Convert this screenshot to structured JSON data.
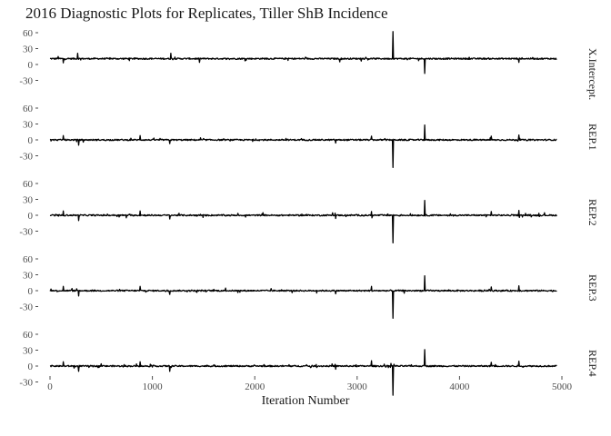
{
  "chart_data": {
    "type": "line",
    "title": "2016 Diagnostic Plots for Replicates, Tiller ShB Incidence",
    "xlabel": "Iteration Number",
    "ylabel": "",
    "x_ticks": [
      0,
      1000,
      2000,
      3000,
      4000,
      5000
    ],
    "xlim": [
      0,
      4950
    ],
    "y_ticks": [
      60,
      30,
      0,
      -30
    ],
    "ylim": [
      -45,
      70
    ],
    "grid": false,
    "legend": "none",
    "n_iterations": 4950,
    "panels": [
      {
        "name": "X.Intercept.",
        "baseline": 11,
        "noise": 1.3,
        "spikes": [
          {
            "x": 80,
            "y": 15
          },
          {
            "x": 130,
            "y": 3
          },
          {
            "x": 270,
            "y": 21
          },
          {
            "x": 1180,
            "y": 21
          },
          {
            "x": 1460,
            "y": 4
          },
          {
            "x": 2830,
            "y": 5
          },
          {
            "x": 3350,
            "y": 62
          },
          {
            "x": 3660,
            "y": -17
          },
          {
            "x": 4580,
            "y": 4
          }
        ]
      },
      {
        "name": "REP.1",
        "baseline": 0,
        "noise": 1.3,
        "spikes": [
          {
            "x": 130,
            "y": 8
          },
          {
            "x": 280,
            "y": -10
          },
          {
            "x": 880,
            "y": 8
          },
          {
            "x": 1170,
            "y": -7
          },
          {
            "x": 2790,
            "y": -6
          },
          {
            "x": 3140,
            "y": 7
          },
          {
            "x": 3350,
            "y": -52
          },
          {
            "x": 3660,
            "y": 28
          },
          {
            "x": 4310,
            "y": 7
          },
          {
            "x": 4580,
            "y": 9
          }
        ]
      },
      {
        "name": "REP.2",
        "baseline": 0,
        "noise": 1.3,
        "spikes": [
          {
            "x": 130,
            "y": 8
          },
          {
            "x": 280,
            "y": -10
          },
          {
            "x": 880,
            "y": 8
          },
          {
            "x": 1170,
            "y": -7
          },
          {
            "x": 2790,
            "y": -6
          },
          {
            "x": 3140,
            "y": 7
          },
          {
            "x": 3350,
            "y": -52
          },
          {
            "x": 3660,
            "y": 28
          },
          {
            "x": 4310,
            "y": 7
          },
          {
            "x": 4580,
            "y": 9
          }
        ]
      },
      {
        "name": "REP.3",
        "baseline": 0,
        "noise": 1.3,
        "spikes": [
          {
            "x": 130,
            "y": 8
          },
          {
            "x": 280,
            "y": -10
          },
          {
            "x": 880,
            "y": 8
          },
          {
            "x": 1170,
            "y": -7
          },
          {
            "x": 2790,
            "y": -6
          },
          {
            "x": 3140,
            "y": 8
          },
          {
            "x": 3350,
            "y": -52
          },
          {
            "x": 3660,
            "y": 28
          },
          {
            "x": 4310,
            "y": 7
          },
          {
            "x": 4580,
            "y": 9
          }
        ]
      },
      {
        "name": "REP.4",
        "baseline": 0,
        "noise": 1.3,
        "spikes": [
          {
            "x": 130,
            "y": 8
          },
          {
            "x": 280,
            "y": -10
          },
          {
            "x": 880,
            "y": 8
          },
          {
            "x": 1170,
            "y": -10
          },
          {
            "x": 2790,
            "y": -6
          },
          {
            "x": 3140,
            "y": 10
          },
          {
            "x": 3350,
            "y": -55
          },
          {
            "x": 3660,
            "y": 31
          },
          {
            "x": 4310,
            "y": 7
          },
          {
            "x": 4580,
            "y": 9
          }
        ]
      }
    ]
  }
}
